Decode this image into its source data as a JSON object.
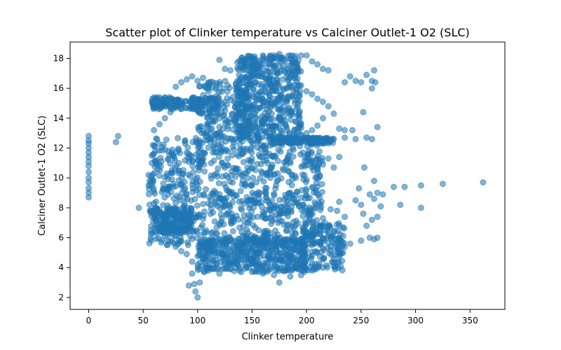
{
  "chart_data": {
    "type": "scatter",
    "title": "Scatter plot of Clinker temperature vs Calciner Outlet-1 O2 (SLC)",
    "xlabel": "Clinker temperature",
    "ylabel": "Calciner Outlet-1 O2 (SLC)",
    "xlim": [
      -17,
      382
    ],
    "ylim": [
      1.2,
      19.1
    ],
    "xticks": [
      0,
      50,
      100,
      150,
      200,
      250,
      300,
      350
    ],
    "yticks": [
      2,
      4,
      6,
      8,
      10,
      12,
      14,
      16,
      18
    ],
    "xtick_labels": [
      "0",
      "50",
      "100",
      "150",
      "200",
      "250",
      "300",
      "350"
    ],
    "ytick_labels": [
      "2",
      "4",
      "6",
      "8",
      "10",
      "12",
      "14",
      "16",
      "18"
    ],
    "marker_color": "#1f77b4",
    "marker_alpha": 0.55,
    "grid": false,
    "legend": "none",
    "points": [
      [
        0,
        8.7
      ],
      [
        0,
        9.0
      ],
      [
        0,
        9.3
      ],
      [
        0,
        9.7
      ],
      [
        0,
        10.0
      ],
      [
        0,
        10.4
      ],
      [
        0,
        10.8
      ],
      [
        0,
        11.1
      ],
      [
        0,
        11.4
      ],
      [
        0,
        11.7
      ],
      [
        0,
        12.0
      ],
      [
        0,
        12.3
      ],
      [
        0,
        12.5
      ],
      [
        0,
        12.8
      ],
      [
        25,
        12.4
      ],
      [
        27,
        12.8
      ],
      [
        46,
        8.0
      ],
      [
        55,
        9.5
      ],
      [
        58,
        11.0
      ],
      [
        60,
        15.4
      ],
      [
        65,
        15.4
      ],
      [
        70,
        15.4
      ],
      [
        75,
        15.3
      ],
      [
        80,
        15.2
      ],
      [
        85,
        15.0
      ],
      [
        80,
        16.1
      ],
      [
        85,
        16.4
      ],
      [
        90,
        16.6
      ],
      [
        95,
        16.8
      ],
      [
        100,
        16.5
      ],
      [
        105,
        16.7
      ],
      [
        110,
        16.4
      ],
      [
        120,
        17.9
      ],
      [
        125,
        17.3
      ],
      [
        100,
        2.0
      ],
      [
        98,
        2.4
      ],
      [
        97,
        2.9
      ],
      [
        92,
        2.8
      ],
      [
        102,
        3.0
      ],
      [
        95,
        3.6
      ],
      [
        110,
        3.8
      ],
      [
        120,
        3.6
      ],
      [
        130,
        3.9
      ],
      [
        140,
        3.7
      ],
      [
        150,
        3.7
      ],
      [
        160,
        3.6
      ],
      [
        170,
        3.5
      ],
      [
        175,
        3.0
      ],
      [
        185,
        3.4
      ],
      [
        195,
        3.5
      ],
      [
        205,
        3.8
      ],
      [
        215,
        4.0
      ],
      [
        225,
        4.6
      ],
      [
        230,
        5.0
      ],
      [
        240,
        5.6
      ],
      [
        250,
        5.8
      ],
      [
        258,
        6.0
      ],
      [
        262,
        5.9
      ],
      [
        265,
        6.0
      ],
      [
        225,
        12.6
      ],
      [
        235,
        12.7
      ],
      [
        245,
        12.6
      ],
      [
        255,
        12.7
      ],
      [
        260,
        12.6
      ],
      [
        230,
        13.3
      ],
      [
        235,
        13.2
      ],
      [
        242,
        13.2
      ],
      [
        252,
        14.4
      ],
      [
        265,
        13.4
      ],
      [
        235,
        16.4
      ],
      [
        240,
        16.8
      ],
      [
        245,
        16.5
      ],
      [
        250,
        16.4
      ],
      [
        255,
        16.9
      ],
      [
        260,
        16.5
      ],
      [
        262,
        17.2
      ],
      [
        263,
        16.4
      ],
      [
        260,
        16.0
      ],
      [
        253,
        10.7
      ],
      [
        262,
        9.8
      ],
      [
        265,
        9.0
      ],
      [
        258,
        8.9
      ],
      [
        262,
        8.6
      ],
      [
        268,
        8.1
      ],
      [
        248,
        9.3
      ],
      [
        245,
        8.5
      ],
      [
        250,
        8.2
      ],
      [
        252,
        7.6
      ],
      [
        260,
        7.2
      ],
      [
        265,
        7.4
      ],
      [
        255,
        6.8
      ],
      [
        270,
        8.9
      ],
      [
        280,
        9.4
      ],
      [
        290,
        9.4
      ],
      [
        286,
        8.2
      ],
      [
        305,
        9.5
      ],
      [
        305,
        8.0
      ],
      [
        325,
        9.6
      ],
      [
        362,
        9.7
      ],
      [
        215,
        10.9
      ],
      [
        220,
        11.3
      ],
      [
        225,
        10.7
      ],
      [
        230,
        11.4
      ],
      [
        210,
        9.4
      ],
      [
        212,
        8.7
      ],
      [
        205,
        7.0
      ],
      [
        215,
        7.3
      ],
      [
        222,
        7.9
      ],
      [
        230,
        8.4
      ],
      [
        235,
        7.4
      ],
      [
        228,
        7.8
      ],
      [
        130,
        17.2
      ],
      [
        140,
        17.8
      ],
      [
        150,
        18.1
      ],
      [
        160,
        18.2
      ],
      [
        170,
        18.2
      ],
      [
        175,
        18.3
      ],
      [
        185,
        18.2
      ],
      [
        195,
        18.2
      ],
      [
        200,
        18.2
      ],
      [
        205,
        17.8
      ],
      [
        210,
        17.6
      ],
      [
        215,
        17.3
      ],
      [
        220,
        17.2
      ],
      [
        195,
        16.2
      ],
      [
        200,
        15.8
      ],
      [
        205,
        15.6
      ],
      [
        210,
        15.3
      ],
      [
        215,
        15.1
      ],
      [
        220,
        14.8
      ],
      [
        225,
        14.3
      ],
      [
        215,
        14.0
      ],
      [
        210,
        13.5
      ],
      [
        205,
        13.2
      ],
      [
        200,
        13.0
      ],
      [
        55,
        10.2
      ],
      [
        56,
        9.8
      ],
      [
        58,
        11.5
      ],
      [
        59,
        12.2
      ],
      [
        60,
        8.3
      ],
      [
        62,
        6.8
      ],
      [
        65,
        6.4
      ],
      [
        70,
        6.1
      ],
      [
        75,
        5.8
      ],
      [
        80,
        5.4
      ],
      [
        85,
        5.1
      ],
      [
        90,
        4.9
      ],
      [
        95,
        4.4
      ],
      [
        100,
        4.2
      ],
      [
        105,
        4.6
      ],
      [
        110,
        4.1
      ],
      [
        115,
        3.9
      ],
      [
        60,
        13.2
      ],
      [
        65,
        13.6
      ],
      [
        70,
        14.0
      ],
      [
        75,
        14.4
      ],
      [
        85,
        14.6
      ],
      [
        95,
        14.8
      ],
      [
        105,
        15.0
      ],
      [
        115,
        15.2
      ],
      [
        155,
        5.0
      ],
      [
        165,
        4.8
      ],
      [
        175,
        5.0
      ],
      [
        185,
        4.7
      ],
      [
        195,
        5.0
      ],
      [
        205,
        4.8
      ],
      [
        215,
        5.3
      ],
      [
        185,
        11.0
      ],
      [
        190,
        12.4
      ],
      [
        195,
        12.9
      ],
      [
        190,
        10.0
      ],
      [
        185,
        9.0
      ],
      [
        192,
        8.3
      ]
    ],
    "dense_regions": [
      {
        "x": [
          55,
          215
        ],
        "y": [
          5.5,
          12.7
        ],
        "n": 900
      },
      {
        "x": [
          100,
          200
        ],
        "y": [
          3.7,
          6.0
        ],
        "n": 450
      },
      {
        "x": [
          135,
          195
        ],
        "y": [
          12.5,
          18.2
        ],
        "n": 520
      },
      {
        "x": [
          58,
          120
        ],
        "y": [
          14.6,
          15.4
        ],
        "n": 160
      },
      {
        "x": [
          100,
          150
        ],
        "y": [
          12.5,
          16.5
        ],
        "n": 200
      },
      {
        "x": [
          195,
          235
        ],
        "y": [
          3.8,
          7.0
        ],
        "n": 160
      },
      {
        "x": [
          60,
          95
        ],
        "y": [
          6.3,
          8.0
        ],
        "n": 160
      },
      {
        "x": [
          175,
          225
        ],
        "y": [
          12.3,
          12.7
        ],
        "n": 120
      }
    ]
  }
}
